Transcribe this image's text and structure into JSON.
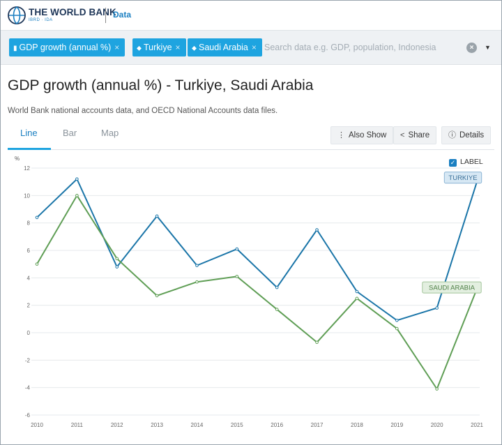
{
  "header": {
    "brand": "THE WORLD BANK",
    "brand_sub": "IBRD · IDA",
    "section": "Data"
  },
  "search": {
    "chips": [
      {
        "label": "GDP growth (annual %)",
        "icon": "bar-chart-icon"
      },
      {
        "label": "Turkiye",
        "icon": "map-pin-icon"
      },
      {
        "label": "Saudi Arabia",
        "icon": "map-pin-icon"
      }
    ],
    "chip_close": "×",
    "placeholder": "Search data e.g. GDP, population, Indonesia",
    "clear": "×",
    "dropdown": "▼"
  },
  "page": {
    "title": "GDP growth (annual %) - Turkiye, Saudi Arabia",
    "subtitle": "World Bank national accounts data, and OECD National Accounts data files."
  },
  "tabs": [
    "Line",
    "Bar",
    "Map"
  ],
  "toolbar": {
    "also_show": "Also Show",
    "share": "Share",
    "details": "Details"
  },
  "label_toggle": "LABEL",
  "colors": {
    "accent": "#1ea4e0",
    "turkiye": "#1a75a8",
    "saudi": "#5f9e55"
  },
  "chart_data": {
    "type": "line",
    "ylabel": "%",
    "ylim": [
      -6,
      12
    ],
    "yticks": [
      "12",
      "10",
      "8",
      "6",
      "4",
      "2",
      "0",
      "-2",
      "-4",
      "-6"
    ],
    "x": [
      "2010",
      "2011",
      "2012",
      "2013",
      "2014",
      "2015",
      "2016",
      "2017",
      "2018",
      "2019",
      "2020",
      "2021"
    ],
    "grid": true,
    "series": [
      {
        "name": "TURKIYE",
        "values": [
          8.4,
          11.2,
          4.8,
          8.5,
          4.9,
          6.1,
          3.3,
          7.5,
          3.0,
          0.9,
          1.8,
          11.0
        ]
      },
      {
        "name": "SAUDI ARABIA",
        "values": [
          5.0,
          10.0,
          5.4,
          2.7,
          3.7,
          4.1,
          1.7,
          -0.7,
          2.5,
          0.3,
          -4.1,
          3.2
        ]
      }
    ]
  }
}
